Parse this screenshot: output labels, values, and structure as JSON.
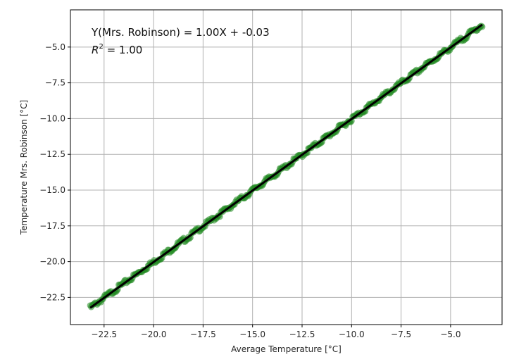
{
  "chart_data": {
    "type": "scatter",
    "title": "",
    "xlabel": "Average Temperature [°C]",
    "ylabel": "Temperature Mrs. Robinson [°C]",
    "xlim": [
      -24.2,
      -2.4
    ],
    "ylim": [
      -24.4,
      -2.4
    ],
    "grid": true,
    "x_ticks": [
      -22.5,
      -20.0,
      -17.5,
      -15.0,
      -12.5,
      -10.0,
      -7.5,
      -5.0
    ],
    "x_tick_labels": [
      "−22.5",
      "−20.0",
      "−17.5",
      "−15.0",
      "−12.5",
      "−10.0",
      "−7.5",
      "−5.0"
    ],
    "y_ticks": [
      -5.0,
      -7.5,
      -10.0,
      -12.5,
      -15.0,
      -17.5,
      -20.0,
      -22.5
    ],
    "y_tick_labels": [
      "−5.0",
      "−7.5",
      "−10.0",
      "−12.5",
      "−15.0",
      "−17.5",
      "−20.0",
      "−22.5"
    ],
    "series": [
      {
        "kind": "scatter",
        "color": "#228b22",
        "x_range": [
          -23.2,
          -3.4
        ],
        "n_points": 400
      },
      {
        "kind": "fit_line",
        "color": "#000000",
        "slope": 1.0,
        "intercept": -0.03,
        "x_range": [
          -23.2,
          -3.4
        ]
      }
    ],
    "annotation": {
      "equation": "Y(Mrs. Robinson) = 1.00X + -0.03",
      "r2_label": "R",
      "r2_sup": "2",
      "r2_value": " = 1.00"
    }
  }
}
